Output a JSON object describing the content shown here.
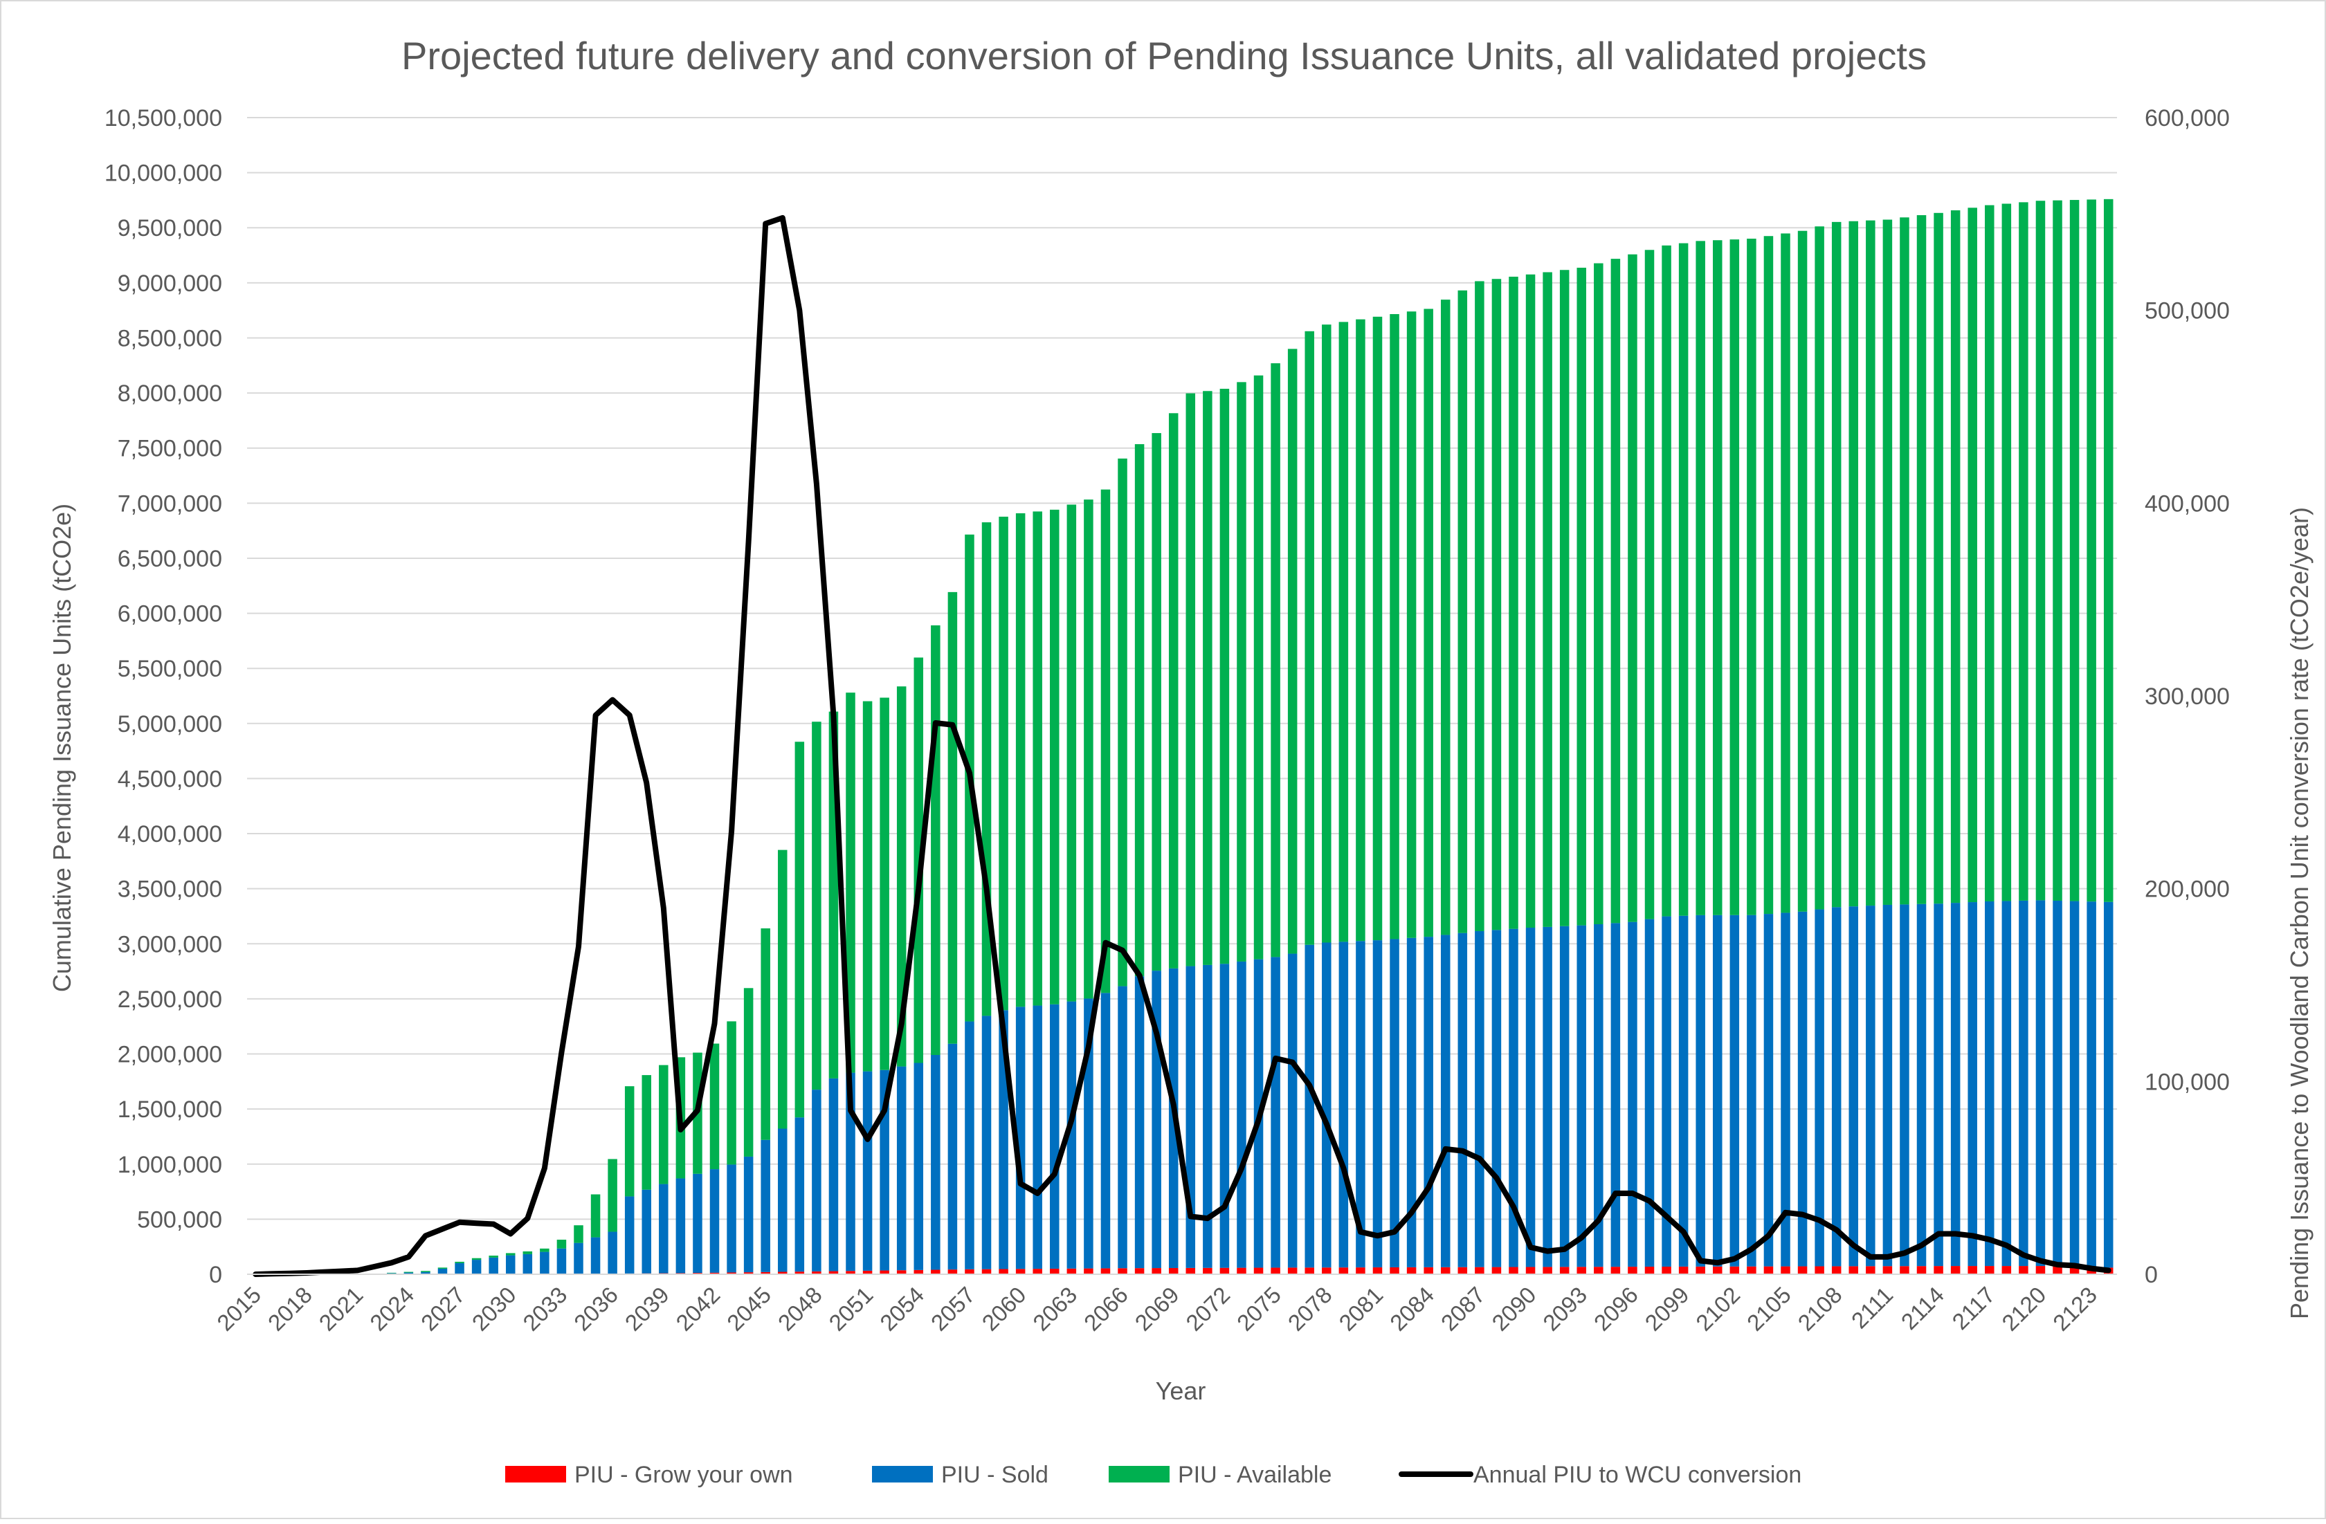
{
  "chart_data": {
    "type": "bar",
    "title": "Projected future delivery and conversion of Pending Issuance Units, all validated projects",
    "xlabel": "Year",
    "ylabel": "Cumulative Pending Issuance Units (tCO2e)",
    "y2label": "Pending Issuance to Woodland Carbon Unit conversion rate (tCO2e/year)",
    "stacked": true,
    "grid": true,
    "legend_position": "bottom",
    "x_range": [
      2015,
      2124
    ],
    "x_tick_step": 3,
    "ylim": [
      0,
      10500000
    ],
    "y_tick_step": 500000,
    "y2lim": [
      0,
      600000
    ],
    "y2_tick_step": 100000,
    "series": [
      {
        "name": "PIU - Grow your own",
        "kind": "bar",
        "axis": "left",
        "color": "#ff0000",
        "keypoints": [
          [
            2015,
            0
          ],
          [
            2024,
            0
          ],
          [
            2030,
            2000
          ],
          [
            2036,
            6000
          ],
          [
            2040,
            10000
          ],
          [
            2045,
            20000
          ],
          [
            2050,
            30000
          ],
          [
            2057,
            45000
          ],
          [
            2066,
            55000
          ],
          [
            2075,
            60000
          ],
          [
            2087,
            65000
          ],
          [
            2100,
            70000
          ],
          [
            2115,
            75000
          ],
          [
            2120,
            75000
          ],
          [
            2124,
            60000
          ]
        ]
      },
      {
        "name": "PIU - Sold",
        "kind": "bar",
        "axis": "left",
        "color": "#0070c0",
        "keypoints": [
          [
            2015,
            0
          ],
          [
            2021,
            0
          ],
          [
            2022,
            5000
          ],
          [
            2023,
            10000
          ],
          [
            2024,
            15000
          ],
          [
            2025,
            20000
          ],
          [
            2026,
            50000
          ],
          [
            2027,
            100000
          ],
          [
            2028,
            130000
          ],
          [
            2029,
            150000
          ],
          [
            2030,
            170000
          ],
          [
            2031,
            180000
          ],
          [
            2032,
            200000
          ],
          [
            2033,
            230000
          ],
          [
            2034,
            280000
          ],
          [
            2035,
            330000
          ],
          [
            2036,
            380000
          ],
          [
            2037,
            700000
          ],
          [
            2038,
            760000
          ],
          [
            2039,
            810000
          ],
          [
            2040,
            860000
          ],
          [
            2041,
            900000
          ],
          [
            2042,
            940000
          ],
          [
            2043,
            980000
          ],
          [
            2044,
            1050000
          ],
          [
            2045,
            1200000
          ],
          [
            2046,
            1300000
          ],
          [
            2047,
            1400000
          ],
          [
            2048,
            1650000
          ],
          [
            2049,
            1750000
          ],
          [
            2050,
            1800000
          ],
          [
            2052,
            1820000
          ],
          [
            2054,
            1880000
          ],
          [
            2055,
            1950000
          ],
          [
            2056,
            2050000
          ],
          [
            2057,
            2250000
          ],
          [
            2058,
            2300000
          ],
          [
            2059,
            2350000
          ],
          [
            2060,
            2380000
          ],
          [
            2062,
            2400000
          ],
          [
            2064,
            2450000
          ],
          [
            2065,
            2500000
          ],
          [
            2066,
            2560000
          ],
          [
            2067,
            2650000
          ],
          [
            2068,
            2700000
          ],
          [
            2070,
            2740000
          ],
          [
            2072,
            2760000
          ],
          [
            2074,
            2800000
          ],
          [
            2075,
            2820000
          ],
          [
            2076,
            2850000
          ],
          [
            2077,
            2930000
          ],
          [
            2078,
            2950000
          ],
          [
            2081,
            2970000
          ],
          [
            2084,
            3000000
          ],
          [
            2087,
            3050000
          ],
          [
            2090,
            3080000
          ],
          [
            2093,
            3100000
          ],
          [
            2096,
            3130000
          ],
          [
            2098,
            3180000
          ],
          [
            2100,
            3190000
          ],
          [
            2103,
            3190000
          ],
          [
            2106,
            3220000
          ],
          [
            2108,
            3260000
          ],
          [
            2111,
            3280000
          ],
          [
            2114,
            3290000
          ],
          [
            2117,
            3310000
          ],
          [
            2120,
            3320000
          ],
          [
            2124,
            3320000
          ]
        ]
      },
      {
        "name": "PIU - Available",
        "kind": "bar",
        "axis": "left",
        "color": "#00b050",
        "keypoints": [
          [
            2015,
            0
          ],
          [
            2021,
            0
          ],
          [
            2022,
            0
          ],
          [
            2025,
            10000
          ],
          [
            2026,
            10000
          ],
          [
            2030,
            20000
          ],
          [
            2032,
            30000
          ],
          [
            2033,
            80000
          ],
          [
            2034,
            160000
          ],
          [
            2035,
            390000
          ],
          [
            2036,
            660000
          ],
          [
            2037,
            1000000
          ],
          [
            2038,
            1040000
          ],
          [
            2039,
            1080000
          ],
          [
            2040,
            1100000
          ],
          [
            2041,
            1100000
          ],
          [
            2042,
            1140000
          ],
          [
            2043,
            1300000
          ],
          [
            2044,
            1530000
          ],
          [
            2045,
            1920000
          ],
          [
            2046,
            2530000
          ],
          [
            2047,
            3410000
          ],
          [
            2048,
            3340000
          ],
          [
            2049,
            3330000
          ],
          [
            2050,
            3450000
          ],
          [
            2051,
            3360000
          ],
          [
            2052,
            3380000
          ],
          [
            2053,
            3450000
          ],
          [
            2054,
            3680000
          ],
          [
            2055,
            3900000
          ],
          [
            2056,
            4100000
          ],
          [
            2057,
            4420000
          ],
          [
            2058,
            4480000
          ],
          [
            2059,
            4480000
          ],
          [
            2060,
            4480000
          ],
          [
            2062,
            4490000
          ],
          [
            2064,
            4530000
          ],
          [
            2065,
            4570000
          ],
          [
            2066,
            4790000
          ],
          [
            2067,
            4830000
          ],
          [
            2068,
            4880000
          ],
          [
            2070,
            5200000
          ],
          [
            2072,
            5220000
          ],
          [
            2074,
            5300000
          ],
          [
            2075,
            5390000
          ],
          [
            2076,
            5490000
          ],
          [
            2077,
            5570000
          ],
          [
            2078,
            5610000
          ],
          [
            2081,
            5660000
          ],
          [
            2084,
            5700000
          ],
          [
            2087,
            5900000
          ],
          [
            2090,
            5930000
          ],
          [
            2093,
            5970000
          ],
          [
            2096,
            6060000
          ],
          [
            2098,
            6090000
          ],
          [
            2100,
            6120000
          ],
          [
            2103,
            6140000
          ],
          [
            2106,
            6180000
          ],
          [
            2108,
            6220000
          ],
          [
            2111,
            6220000
          ],
          [
            2114,
            6270000
          ],
          [
            2117,
            6320000
          ],
          [
            2120,
            6350000
          ],
          [
            2124,
            6380000
          ]
        ]
      },
      {
        "name": "Annual PIU to WCU conversion",
        "kind": "line",
        "axis": "right",
        "color": "#000000",
        "keypoints": [
          [
            2015,
            0
          ],
          [
            2018,
            700
          ],
          [
            2021,
            2000
          ],
          [
            2023,
            6000
          ],
          [
            2024,
            9000
          ],
          [
            2025,
            20000
          ],
          [
            2027,
            27000
          ],
          [
            2029,
            26000
          ],
          [
            2030,
            21000
          ],
          [
            2031,
            29000
          ],
          [
            2032,
            55000
          ],
          [
            2033,
            115000
          ],
          [
            2034,
            170000
          ],
          [
            2035,
            290000
          ],
          [
            2036,
            298000
          ],
          [
            2037,
            290000
          ],
          [
            2038,
            255000
          ],
          [
            2039,
            190000
          ],
          [
            2040,
            75000
          ],
          [
            2041,
            85000
          ],
          [
            2042,
            130000
          ],
          [
            2043,
            230000
          ],
          [
            2044,
            380000
          ],
          [
            2045,
            545000
          ],
          [
            2046,
            548000
          ],
          [
            2047,
            500000
          ],
          [
            2048,
            410000
          ],
          [
            2049,
            290000
          ],
          [
            2050,
            85000
          ],
          [
            2051,
            70000
          ],
          [
            2052,
            85000
          ],
          [
            2053,
            130000
          ],
          [
            2054,
            200000
          ],
          [
            2055,
            286000
          ],
          [
            2056,
            285000
          ],
          [
            2057,
            260000
          ],
          [
            2058,
            200000
          ],
          [
            2059,
            125000
          ],
          [
            2060,
            47000
          ],
          [
            2061,
            42000
          ],
          [
            2062,
            52000
          ],
          [
            2063,
            80000
          ],
          [
            2064,
            118000
          ],
          [
            2065,
            172000
          ],
          [
            2066,
            168000
          ],
          [
            2067,
            155000
          ],
          [
            2068,
            125000
          ],
          [
            2069,
            88000
          ],
          [
            2070,
            30000
          ],
          [
            2071,
            29000
          ],
          [
            2072,
            35000
          ],
          [
            2073,
            55000
          ],
          [
            2074,
            80000
          ],
          [
            2075,
            112000
          ],
          [
            2076,
            110000
          ],
          [
            2077,
            98000
          ],
          [
            2078,
            78000
          ],
          [
            2079,
            55000
          ],
          [
            2080,
            22000
          ],
          [
            2081,
            20000
          ],
          [
            2082,
            22000
          ],
          [
            2083,
            32000
          ],
          [
            2084,
            45000
          ],
          [
            2085,
            65000
          ],
          [
            2086,
            64000
          ],
          [
            2087,
            60000
          ],
          [
            2088,
            50000
          ],
          [
            2089,
            35000
          ],
          [
            2090,
            14000
          ],
          [
            2091,
            12000
          ],
          [
            2092,
            13000
          ],
          [
            2093,
            19000
          ],
          [
            2094,
            28000
          ],
          [
            2095,
            42000
          ],
          [
            2096,
            42000
          ],
          [
            2097,
            38000
          ],
          [
            2098,
            30000
          ],
          [
            2099,
            22000
          ],
          [
            2100,
            7000
          ],
          [
            2101,
            6000
          ],
          [
            2102,
            8000
          ],
          [
            2103,
            13000
          ],
          [
            2104,
            20000
          ],
          [
            2105,
            32000
          ],
          [
            2106,
            31000
          ],
          [
            2107,
            28000
          ],
          [
            2108,
            23000
          ],
          [
            2109,
            15000
          ],
          [
            2110,
            9000
          ],
          [
            2111,
            9000
          ],
          [
            2112,
            11000
          ],
          [
            2113,
            15000
          ],
          [
            2114,
            21000
          ],
          [
            2115,
            21000
          ],
          [
            2116,
            20000
          ],
          [
            2117,
            18000
          ],
          [
            2118,
            15000
          ],
          [
            2119,
            10000
          ],
          [
            2120,
            7000
          ],
          [
            2121,
            5000
          ],
          [
            2122,
            4500
          ],
          [
            2123,
            3000
          ],
          [
            2124,
            2000
          ]
        ]
      }
    ]
  }
}
